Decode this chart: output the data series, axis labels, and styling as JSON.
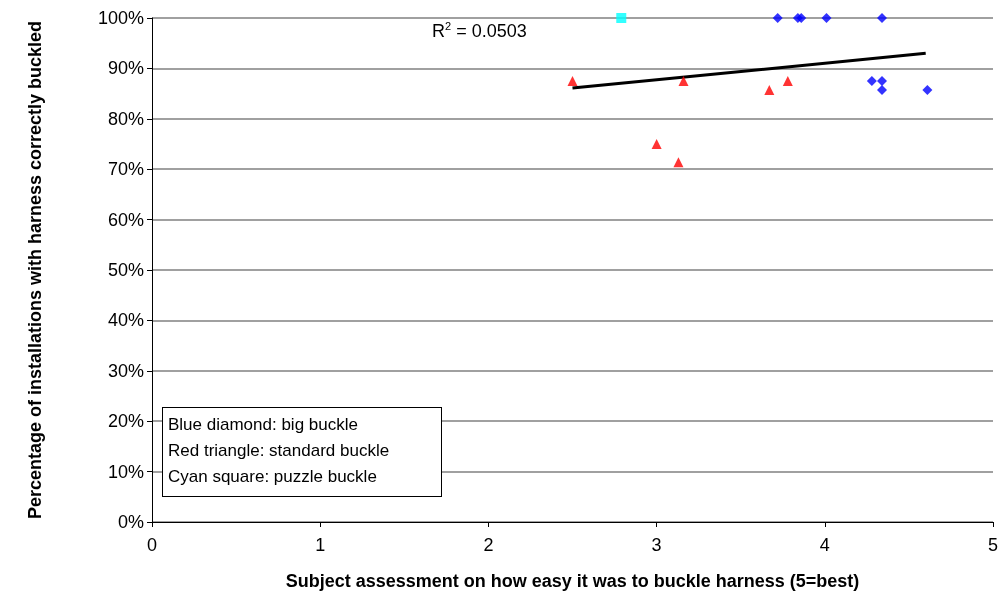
{
  "chart_data": {
    "type": "scatter",
    "xlabel": "Subject assessment on how easy it was to buckle harness (5=best)",
    "ylabel": "Percentage of installations with harness correctly buckled",
    "xlim": [
      0,
      5
    ],
    "xticks": [
      0,
      1,
      2,
      3,
      4,
      5
    ],
    "ylim": [
      0,
      100
    ],
    "yticks": [
      {
        "value": 0,
        "label": "0%"
      },
      {
        "value": 10,
        "label": "10%"
      },
      {
        "value": 20,
        "label": "20%"
      },
      {
        "value": 30,
        "label": "30%"
      },
      {
        "value": 40,
        "label": "40%"
      },
      {
        "value": 50,
        "label": "50%"
      },
      {
        "value": 60,
        "label": "60%"
      },
      {
        "value": 70,
        "label": "70%"
      },
      {
        "value": 80,
        "label": "80%"
      },
      {
        "value": 90,
        "label": "90%"
      },
      {
        "value": 100,
        "label": "100%"
      }
    ],
    "grid": "y",
    "series": [
      {
        "color": "#0000ff",
        "marker": "diamond",
        "x": [
          3.72,
          3.84,
          3.86,
          4.01,
          4.34,
          4.28,
          4.34,
          4.34,
          4.61
        ],
        "values": [
          100,
          100,
          100,
          100,
          100,
          87.5,
          87.5,
          85.7,
          85.7
        ]
      },
      {
        "color": "#ff0000",
        "marker": "triangle",
        "x": [
          2.5,
          3.16,
          3.0,
          3.13,
          3.67,
          3.78
        ],
        "values": [
          87.5,
          87.5,
          75,
          71.4,
          85.7,
          87.5
        ]
      },
      {
        "color": "#00ffff",
        "marker": "square",
        "x": [
          2.79
        ],
        "values": [
          100
        ]
      },
      {
        "type": "line",
        "color": "#000000",
        "marker": "none",
        "line_style": "solid",
        "x": [
          2.5,
          4.6
        ],
        "values": [
          86.1,
          93.0
        ]
      }
    ],
    "annotations": [
      "R$^{2}$ = 0.0503",
      "Blue diamond: big buckle",
      "Red triangle: standard buckle",
      "Cyan square: puzzle buckle"
    ]
  }
}
